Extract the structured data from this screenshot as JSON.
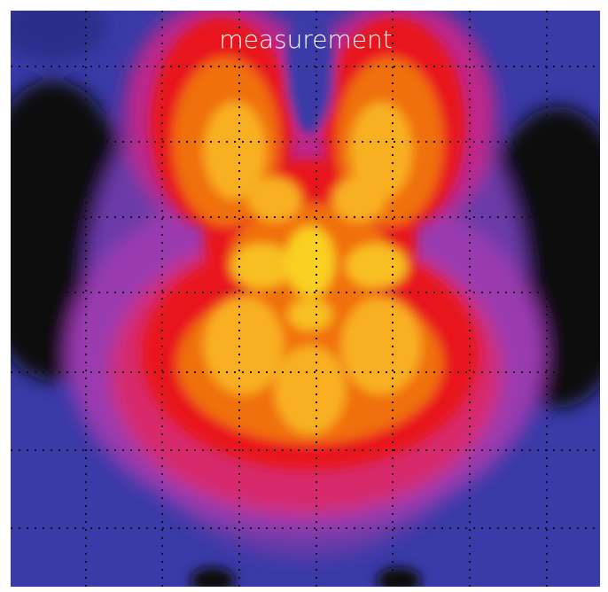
{
  "title": "measurement"
}
